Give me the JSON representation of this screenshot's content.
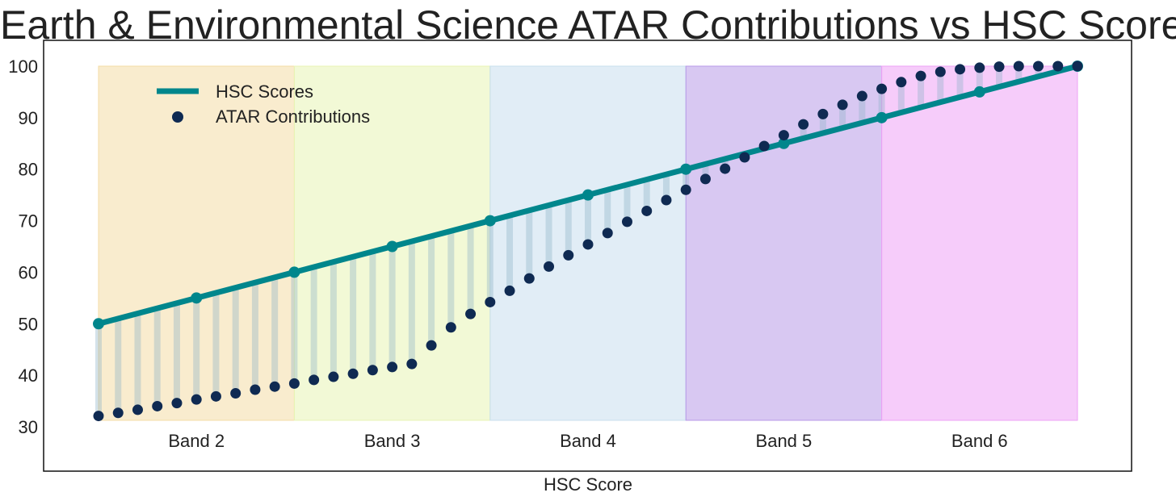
{
  "chart_data": {
    "type": "line",
    "title": "Earth & Environmental Science ATAR Contributions vs HSC Scores",
    "xlabel": "HSC Score",
    "ylabel": "",
    "ylim": [
      20,
      102.5
    ],
    "yticks": [
      30,
      40,
      50,
      60,
      70,
      80,
      90,
      100
    ],
    "grid": false,
    "legend_position": "top-left",
    "bands": [
      {
        "label": "Band 2",
        "color": "#f4dca6"
      },
      {
        "label": "Band 3",
        "color": "#e8f4b4"
      },
      {
        "label": "Band 4",
        "color": "#c8dfee"
      },
      {
        "label": "Band 5",
        "color": "#b89ae8"
      },
      {
        "label": "Band 6",
        "color": "#eea2f6"
      }
    ],
    "series": [
      {
        "name": "HSC Scores",
        "color": "#00868c",
        "x": [
          50,
          55,
          60,
          65,
          70,
          75,
          80,
          85,
          90,
          95,
          100
        ],
        "values": [
          50,
          55,
          60,
          65,
          70,
          75,
          80,
          85,
          90,
          95,
          100
        ]
      },
      {
        "name": "ATAR Contributions",
        "color": "#0f2a52",
        "x": [
          50,
          51,
          52,
          53,
          54,
          55,
          56,
          57,
          58,
          59,
          60,
          61,
          62,
          63,
          64,
          65,
          66,
          67,
          68,
          69,
          70,
          71,
          72,
          73,
          74,
          75,
          76,
          77,
          78,
          79,
          80,
          81,
          82,
          83,
          84,
          85,
          86,
          87,
          88,
          89,
          90,
          91,
          92,
          93,
          94,
          95,
          96,
          97,
          98,
          99,
          100
        ],
        "values": [
          32.1,
          32.7,
          33.3,
          34.0,
          34.6,
          35.3,
          35.9,
          36.5,
          37.2,
          37.8,
          38.4,
          39.1,
          39.7,
          40.3,
          41.0,
          41.6,
          42.2,
          45.8,
          49.3,
          51.9,
          54.2,
          56.4,
          58.8,
          61.1,
          63.3,
          65.4,
          67.6,
          69.8,
          71.9,
          74.0,
          76.0,
          78.1,
          80.1,
          82.3,
          84.5,
          86.6,
          88.7,
          90.7,
          92.5,
          94.2,
          95.6,
          96.9,
          98.1,
          98.9,
          99.4,
          99.7,
          99.9,
          100.0,
          100.0,
          100.0,
          100.0
        ]
      }
    ]
  }
}
